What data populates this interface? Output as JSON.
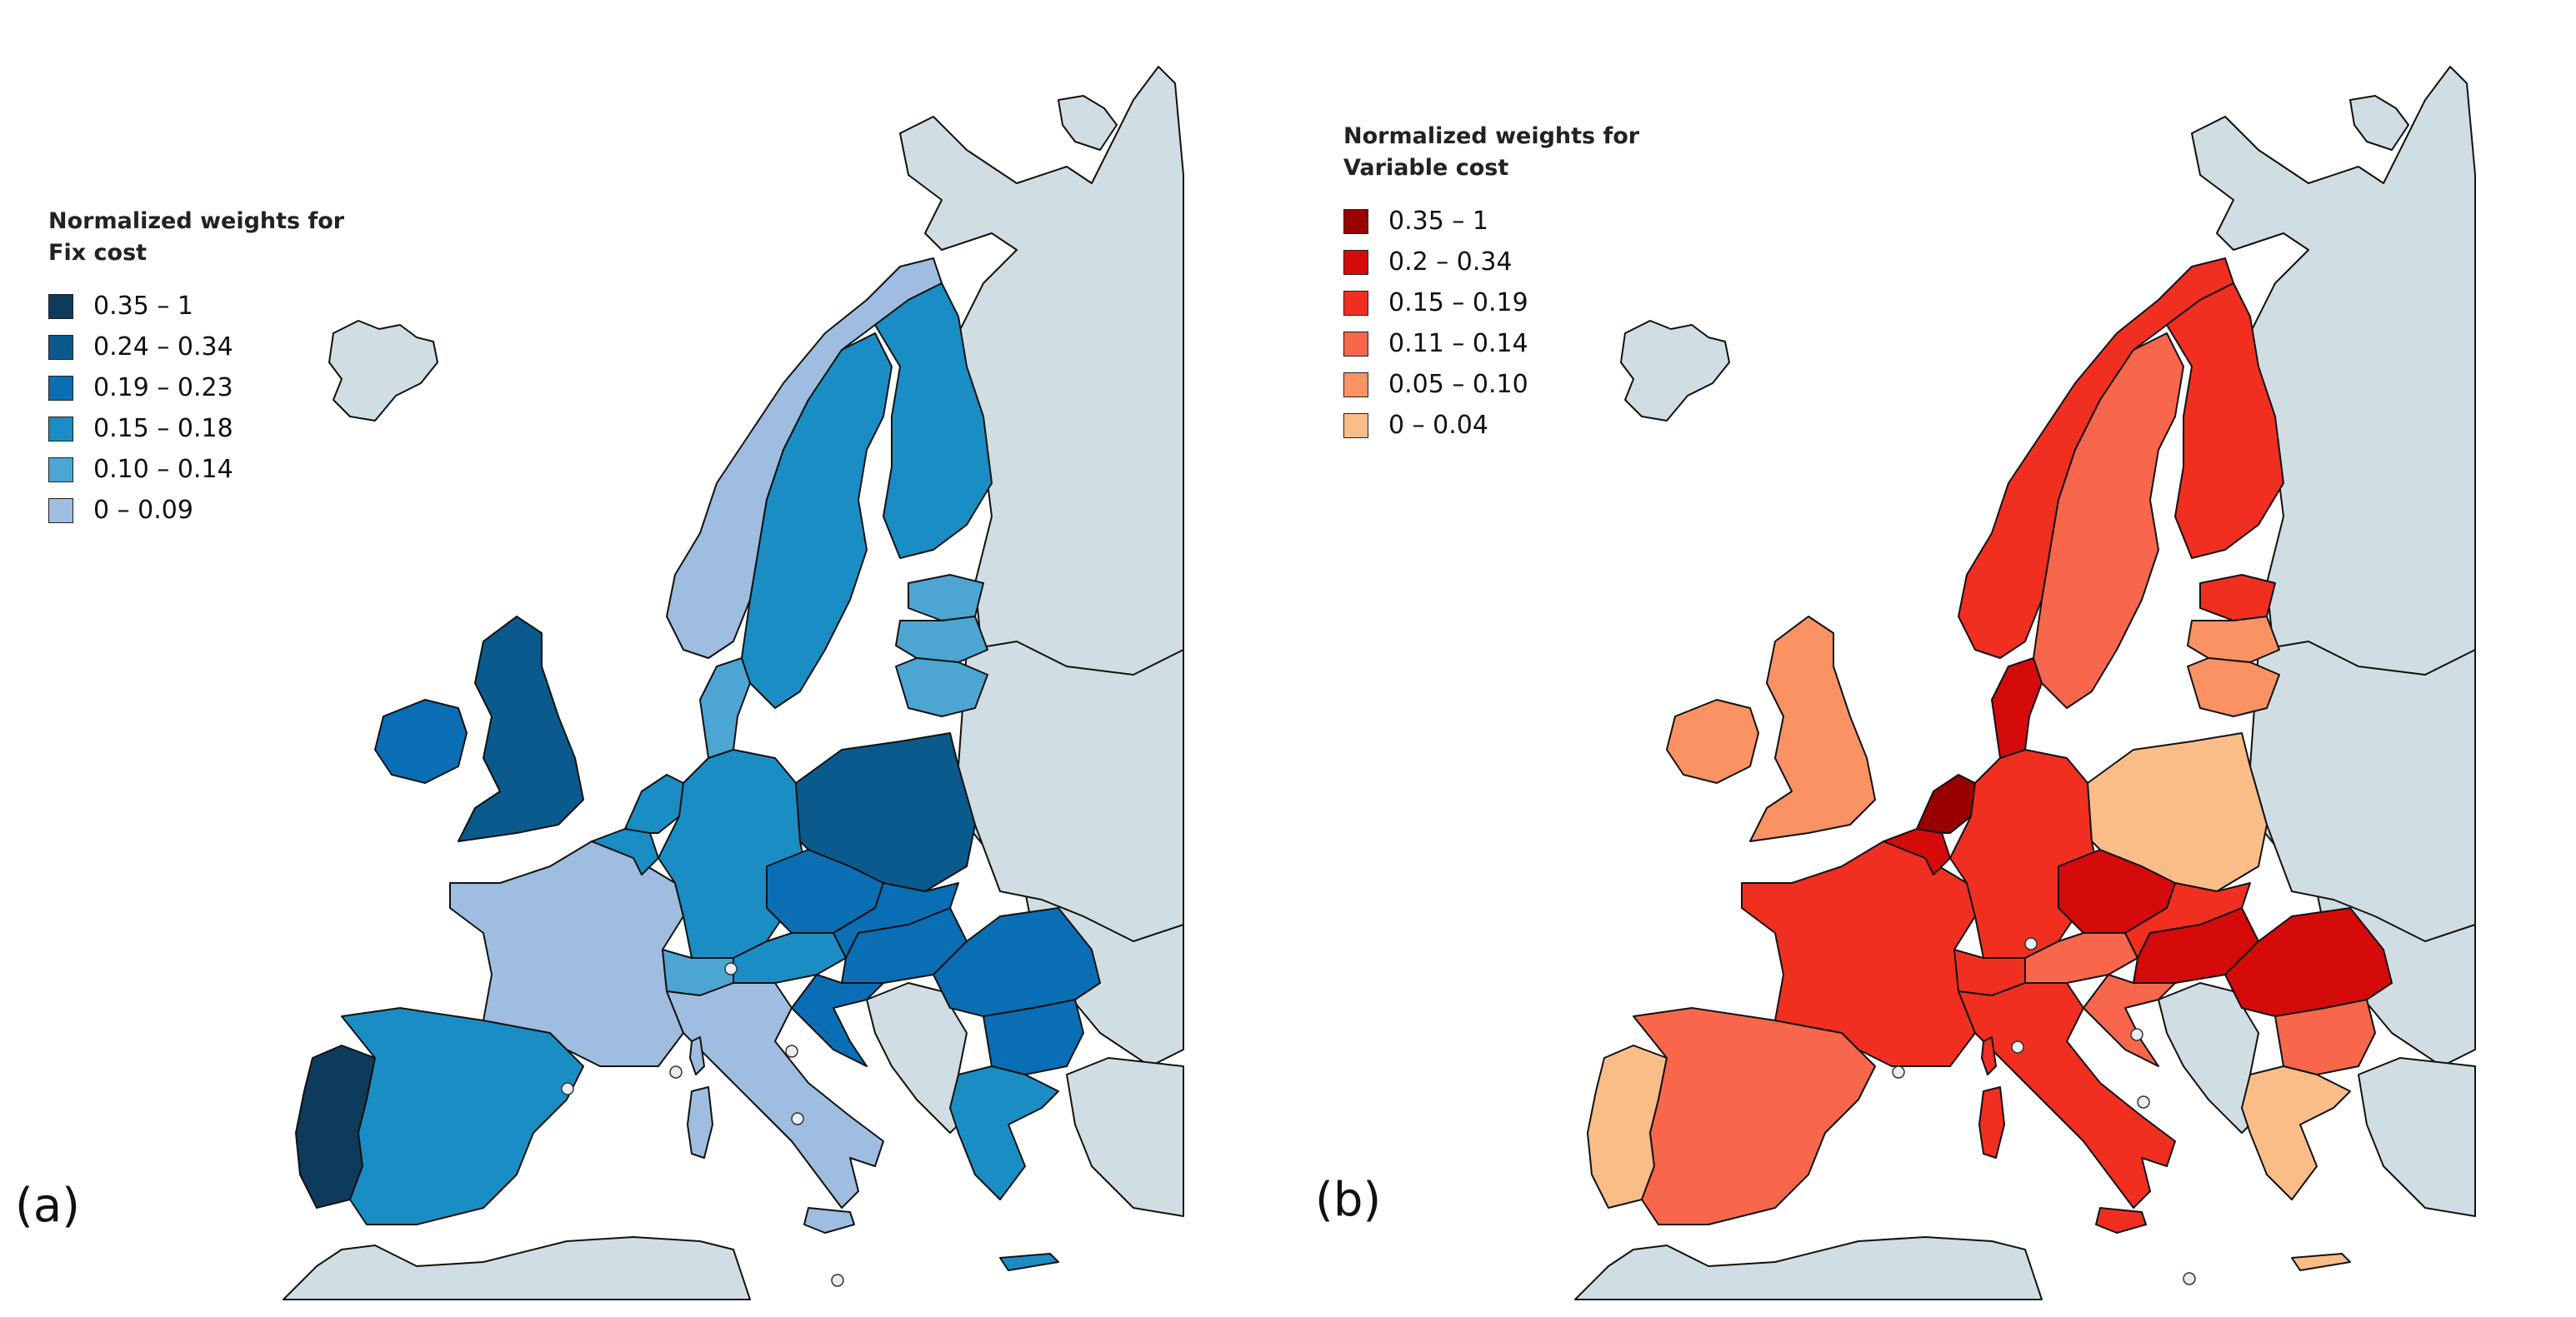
{
  "panels": [
    {
      "label": "(a)",
      "legend": {
        "title": "Normalized weights for\nFix cost",
        "items": [
          {
            "label": "0.35 – 1",
            "color": "#0d3b5c"
          },
          {
            "label": "0.24 – 0.34",
            "color": "#0a5a8e"
          },
          {
            "label": "0.19 – 0.23",
            "color": "#0a6eb4"
          },
          {
            "label": "0.15 – 0.18",
            "color": "#1a8ec4"
          },
          {
            "label": "0.10 – 0.14",
            "color": "#4da5d4"
          },
          {
            "label": "0 – 0.09",
            "color": "#9ebde0"
          }
        ]
      }
    },
    {
      "label": "(b)",
      "legend": {
        "title": "Normalized weights for\nVariable cost",
        "items": [
          {
            "label": "0.35 – 1",
            "color": "#990000"
          },
          {
            "label": "0.2 – 0.34",
            "color": "#d50a0a"
          },
          {
            "label": "0.15 – 0.19",
            "color": "#f12f20"
          },
          {
            "label": "0.11 – 0.14",
            "color": "#f8664c"
          },
          {
            "label": "0.05 – 0.10",
            "color": "#fa9264"
          },
          {
            "label": "0 – 0.04",
            "color": "#fbbd88"
          }
        ]
      }
    }
  ],
  "colors": {
    "non_eu": "#d0dde2",
    "sea": "#ffffff",
    "border": "#111111"
  },
  "fix_cost_classes": {
    "Portugal": 0,
    "United Kingdom": 1,
    "Poland": 1,
    "Czech Republic": 2,
    "Slovakia": 2,
    "Hungary": 2,
    "Romania": 2,
    "Bulgaria": 2,
    "Croatia": 2,
    "Ireland": 2,
    "Spain": 3,
    "Sweden": 3,
    "Finland": 3,
    "Germany": 3,
    "Netherlands": 3,
    "Belgium": 3,
    "Greece": 3,
    "Austria": 3,
    "Denmark": 4,
    "Switzerland": 4,
    "Latvia": 4,
    "Lithuania": 4,
    "Estonia": 4,
    "France": 5,
    "Italy": 5,
    "Norway": 5
  },
  "variable_cost_classes": {
    "Netherlands": 0,
    "Denmark": 1,
    "Czech Republic": 1,
    "Romania": 1,
    "Belgium": 1,
    "Hungary": 1,
    "Norway": 2,
    "Finland": 2,
    "France": 2,
    "Germany": 2,
    "Italy": 2,
    "Estonia": 2,
    "Switzerland": 2,
    "Slovakia": 2,
    "Spain": 3,
    "Sweden": 3,
    "Austria": 3,
    "Bulgaria": 3,
    "Croatia": 3,
    "United Kingdom": 4,
    "Ireland": 4,
    "Latvia": 4,
    "Lithuania": 4,
    "Poland": 5,
    "Portugal": 5,
    "Greece": 5
  }
}
